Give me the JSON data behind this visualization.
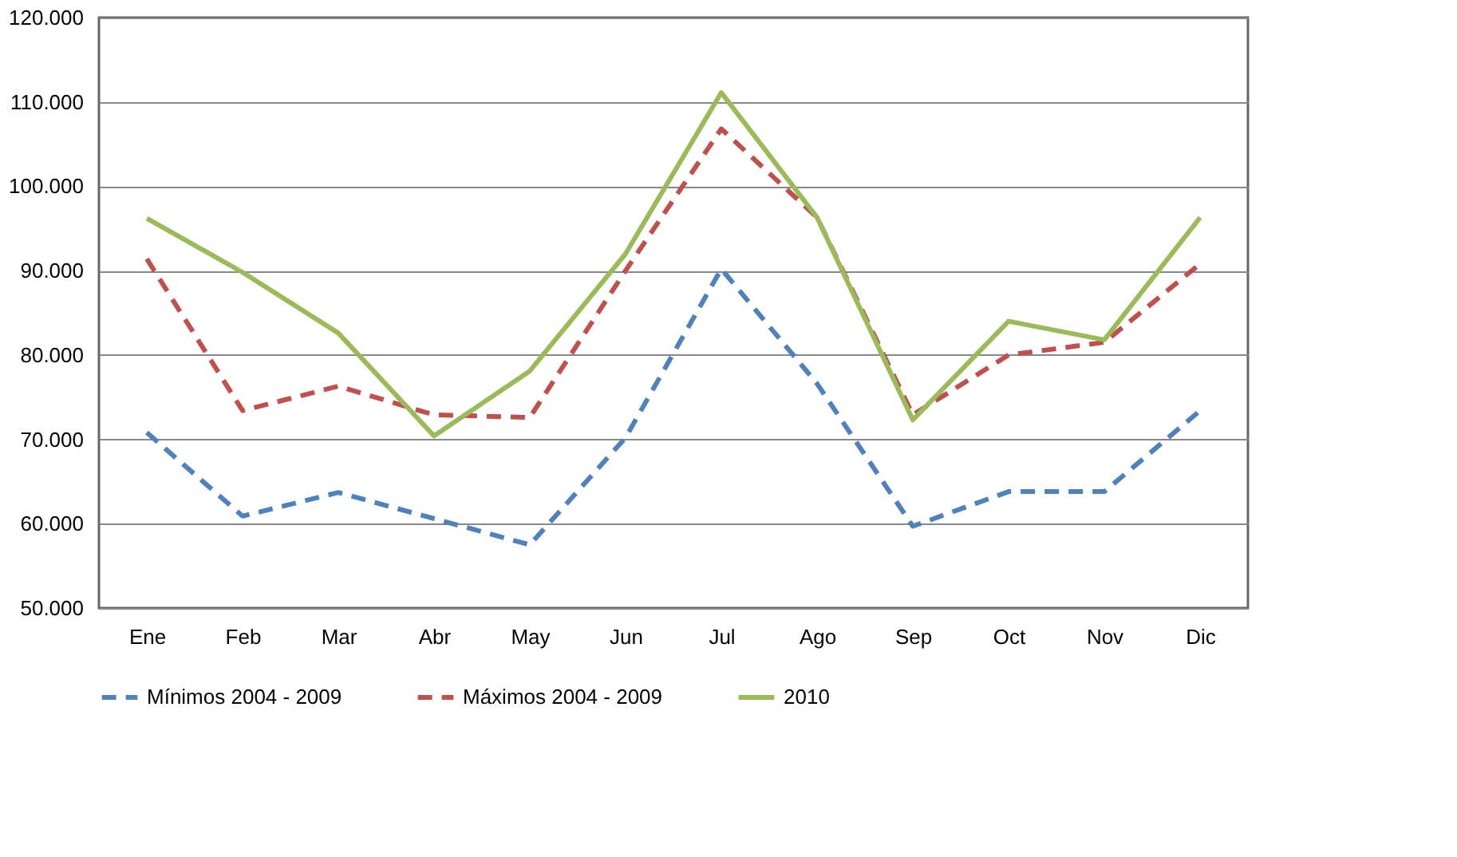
{
  "chart_data": {
    "type": "line",
    "categories": [
      "Ene",
      "Feb",
      "Mar",
      "Abr",
      "May",
      "Jun",
      "Jul",
      "Ago",
      "Sep",
      "Oct",
      "Nov",
      "Dic"
    ],
    "series": [
      {
        "name": "Mínimos 2004 - 2009",
        "color": "#4f81bd",
        "line_style": "dashed",
        "values": [
          70800,
          60900,
          63700,
          60600,
          57500,
          70200,
          90200,
          76600,
          59700,
          63800,
          63800,
          73400
        ]
      },
      {
        "name": "Máximos 2004 - 2009",
        "color": "#c0504d",
        "line_style": "dashed",
        "values": [
          91400,
          73400,
          76300,
          72900,
          72600,
          90000,
          106800,
          96300,
          72900,
          80000,
          81500,
          90800
        ]
      },
      {
        "name": "2010",
        "color": "#9bbb59",
        "line_style": "solid",
        "values": [
          96200,
          89800,
          82600,
          70400,
          78100,
          92000,
          111100,
          96300,
          72300,
          84000,
          81800,
          96300
        ]
      }
    ],
    "ylim": [
      50000,
      120000
    ],
    "yticks": [
      {
        "value": 50000,
        "label": "50.000"
      },
      {
        "value": 60000,
        "label": "60.000"
      },
      {
        "value": 70000,
        "label": "70.000"
      },
      {
        "value": 80000,
        "label": "80.000"
      },
      {
        "value": 90000,
        "label": "90.000"
      },
      {
        "value": 100000,
        "label": "100.000"
      },
      {
        "value": 110000,
        "label": "110.000"
      },
      {
        "value": 120000,
        "label": "120.000"
      }
    ],
    "grid": "y",
    "legend": "bottom",
    "marker": "none"
  }
}
